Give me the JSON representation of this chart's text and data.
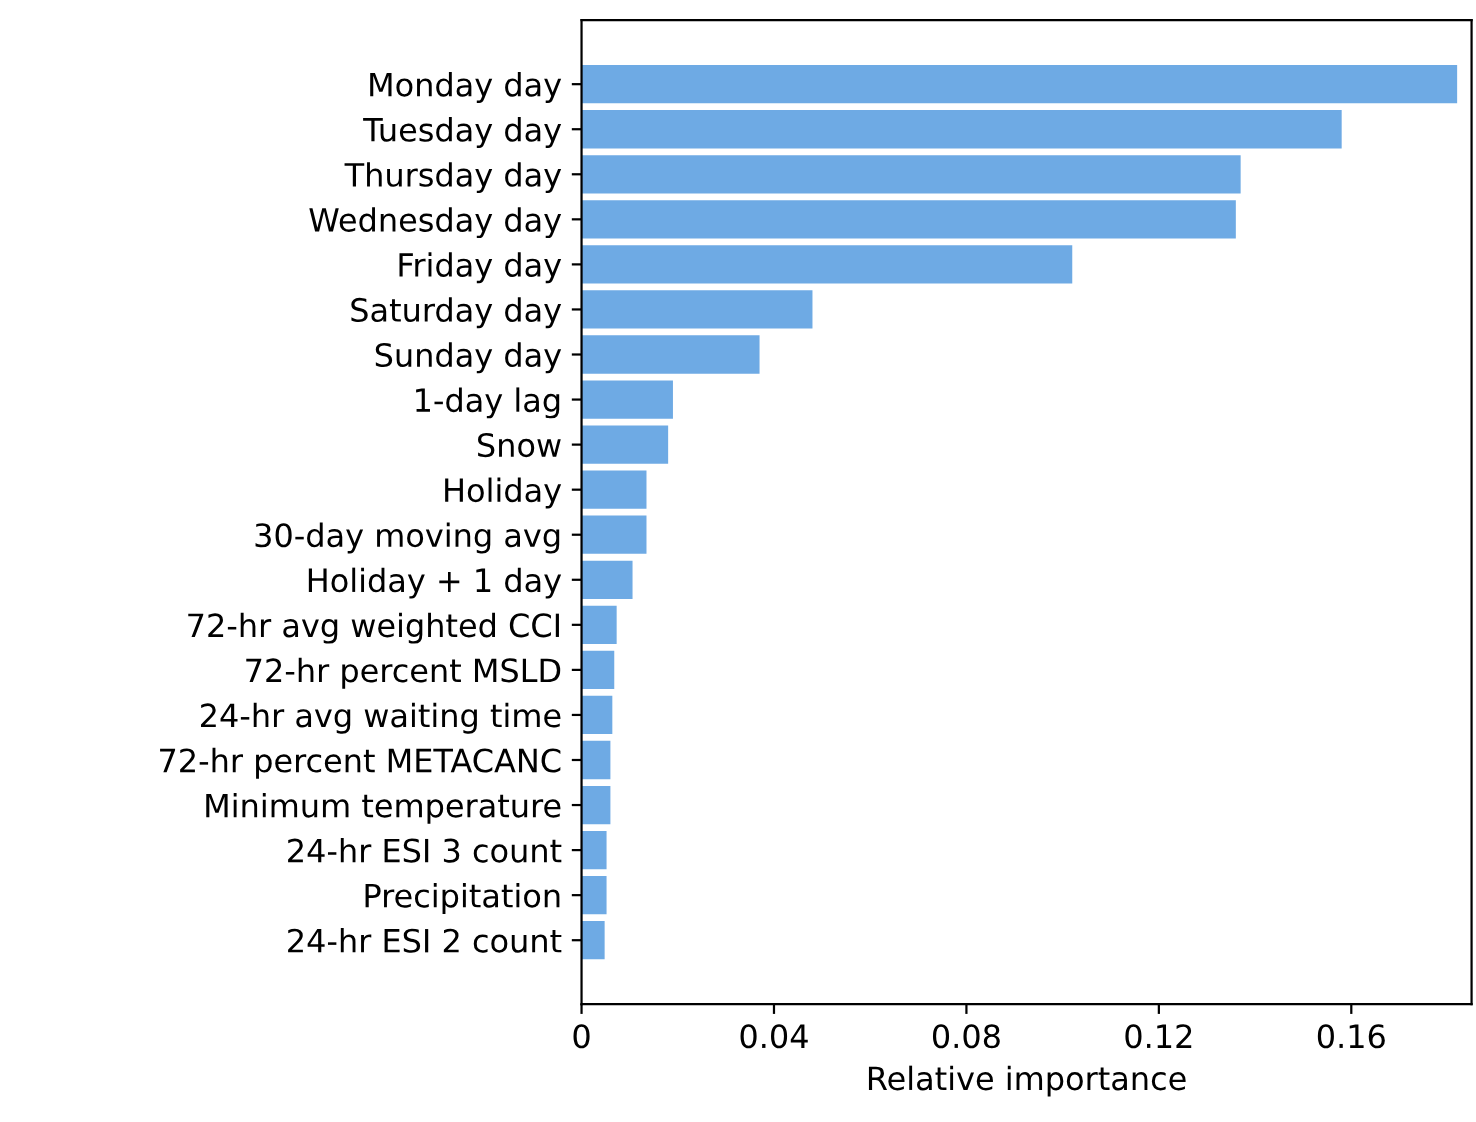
{
  "chart_data": {
    "type": "bar",
    "orientation": "horizontal",
    "xlabel": "Relative importance",
    "categories": [
      "Monday day",
      "Tuesday day",
      "Thursday day",
      "Wednesday day",
      "Friday day",
      "Saturday day",
      "Sunday day",
      "1-day lag",
      "Snow",
      "Holiday",
      "30-day moving avg",
      "Holiday + 1 day",
      "72-hr avg weighted CCI",
      "72-hr percent MSLD",
      "24-hr avg waiting time",
      "72-hr percent METACANC",
      "Minimum temperature",
      "24-hr ESI 3 count",
      "Precipitation",
      "24-hr ESI 2 count"
    ],
    "values": [
      0.182,
      0.158,
      0.137,
      0.136,
      0.102,
      0.048,
      0.037,
      0.019,
      0.018,
      0.0135,
      0.0135,
      0.0106,
      0.0073,
      0.0068,
      0.0064,
      0.006,
      0.006,
      0.0052,
      0.0052,
      0.0048
    ],
    "color": "#6eaae4",
    "xlim": [
      0,
      0.185
    ],
    "xticks": [
      0,
      0.04,
      0.08,
      0.12,
      0.16
    ],
    "grid": false
  }
}
